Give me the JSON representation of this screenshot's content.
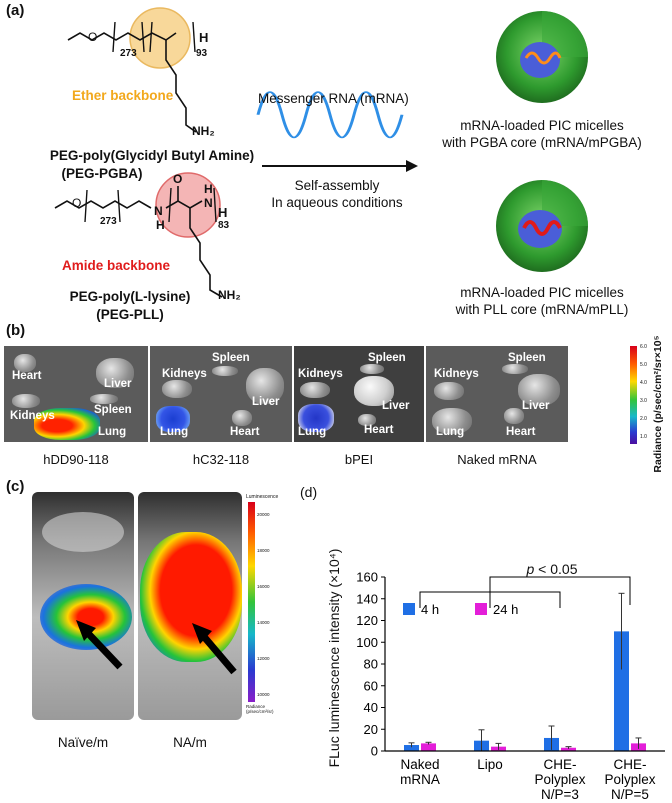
{
  "panel_a": {
    "label": "(a)",
    "pgba": {
      "subscript_peg": "273",
      "subscript_poly": "93",
      "h_sub": "H",
      "amine": "NH₂",
      "backbone_label": "Ether backbone",
      "name_line1": "PEG-poly(Glycidyl Butyl Amine)",
      "name_line2": "(PEG-PGBA)"
    },
    "pll": {
      "subscript_peg": "273",
      "subscript_poly": "83",
      "nh_left": "N",
      "h_left": "H",
      "n_right": "N",
      "h_right": "H",
      "h_ring": "H",
      "amine": "NH₂",
      "backbone_label": "Amide backbone",
      "name_line1": "PEG-poly(L-lysine)",
      "name_line2": "(PEG-PLL)"
    },
    "mrna_label": "Messenger RNA (mRNA)",
    "assembly_line1": "Self-assembly",
    "assembly_line2": "In aqueous conditions",
    "micelle_pgba_line1": "mRNA-loaded PIC micelles",
    "micelle_pgba_line2": "with PGBA core (mRNA/mPGBA)",
    "micelle_pll_line1": "mRNA-loaded PIC micelles",
    "micelle_pll_line2": "with PLL core (mRNA/mPLL)"
  },
  "panel_b": {
    "label": "(b)",
    "panels": [
      {
        "caption": "hDD90-118",
        "organs": [
          "Heart",
          "Liver",
          "Kidneys",
          "Spleen",
          "Lung"
        ]
      },
      {
        "caption": "hC32-118",
        "organs": [
          "Spleen",
          "Kidneys",
          "Liver",
          "Lung",
          "Heart"
        ]
      },
      {
        "caption": "bPEI",
        "organs": [
          "Spleen",
          "Kidneys",
          "Liver",
          "Lung",
          "Heart"
        ]
      },
      {
        "caption": "Naked mRNA",
        "organs": [
          "Spleen",
          "Kidneys",
          "Liver",
          "Lung",
          "Heart"
        ]
      }
    ],
    "colorbar_label": "Radiance (p/sec/cm²/sr×10⁵",
    "colorbar_ticks": [
      "6.0",
      "5.0",
      "4.0",
      "3.0",
      "2.0",
      "1.0"
    ]
  },
  "panel_c": {
    "label": "(c)",
    "captions": [
      "Naïve/m",
      "NA/m"
    ],
    "colorbar_title": "Luminescence",
    "colorbar_ticks": [
      "20000",
      "18000",
      "16000",
      "14000",
      "12000",
      "10000"
    ],
    "colorbar_units": "Radiance (p/sec/cm²/sr)"
  },
  "panel_d": {
    "label": "(d)"
  },
  "chart_data": {
    "type": "bar",
    "title": "",
    "xlabel": "",
    "ylabel": "FLuc luminescence intensity (×10⁴)",
    "ylim": [
      0,
      160
    ],
    "yticks": [
      0,
      20,
      40,
      60,
      80,
      100,
      120,
      140,
      160
    ],
    "categories": [
      [
        "Naked",
        "mRNA"
      ],
      [
        "Lipo"
      ],
      [
        "CHE-",
        "Polyplex",
        "N/P=3"
      ],
      [
        "CHE-",
        "Polyplex",
        "N/P=5"
      ]
    ],
    "series": [
      {
        "name": "4 h",
        "color": "#1f6fe5",
        "values": [
          5.5,
          9.5,
          12,
          110
        ],
        "errors": [
          2,
          10,
          11,
          35
        ]
      },
      {
        "name": "24 h",
        "color": "#e31ed8",
        "values": [
          7,
          4,
          3,
          7
        ],
        "errors": [
          1,
          3,
          1,
          5
        ]
      }
    ],
    "annotation": "p < 0.05",
    "legend": "top-left"
  }
}
